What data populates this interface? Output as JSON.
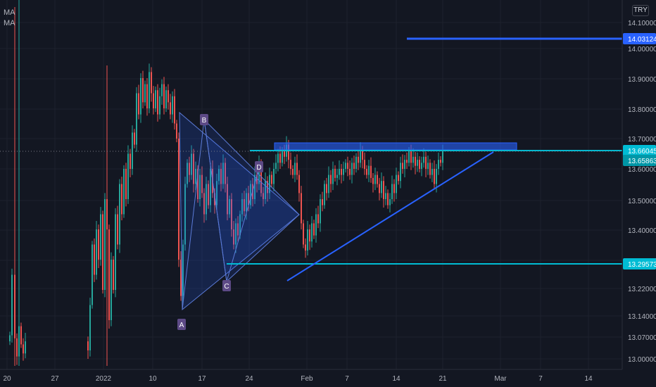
{
  "legend": {
    "ma1": "MA",
    "ma2": "MA"
  },
  "currency": "TRY",
  "colors": {
    "background": "#131722",
    "up": "#26a69a",
    "down": "#ef5350",
    "blue_line": "#2962ff",
    "cyan_line": "#00bcd4",
    "grid": "#1e222d",
    "axis_text": "#b2b5be",
    "pattern_fill": "#2962ff"
  },
  "chart_data": {
    "type": "candlestick",
    "y_axis": {
      "ticks": [
        "14.10000",
        "14.00000",
        "13.90000",
        "13.80000",
        "13.70000",
        "13.60000",
        "13.50000",
        "13.40000",
        "13.30000",
        "13.22000",
        "13.14000",
        "13.07000",
        "13.00000"
      ]
    },
    "x_axis": {
      "ticks": [
        "20",
        "27",
        "2022",
        "10",
        "17",
        "24",
        "Feb",
        "7",
        "14",
        "21",
        "Mar",
        "7",
        "14"
      ]
    },
    "price_labels": [
      {
        "value": "14.03124",
        "style": "blue"
      },
      {
        "value": "13.66045",
        "style": "cyan"
      },
      {
        "value": "13.65863",
        "style": "cyan-dark"
      },
      {
        "value": "13.29573",
        "style": "cyan"
      }
    ],
    "pattern_points": [
      "A",
      "B",
      "C",
      "D"
    ]
  }
}
